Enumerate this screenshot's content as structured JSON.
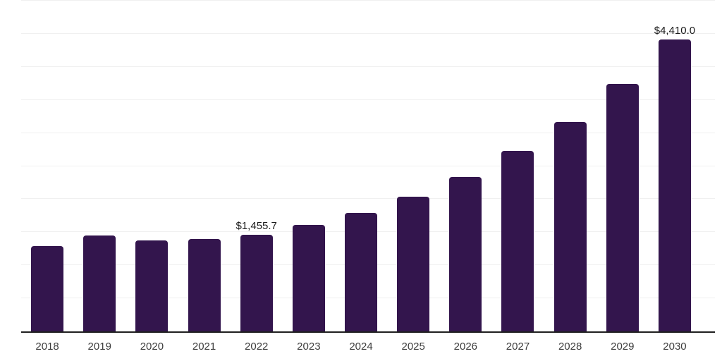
{
  "chart_data": {
    "type": "bar",
    "title": "",
    "xlabel": "",
    "ylabel": "",
    "categories": [
      "2018",
      "2019",
      "2020",
      "2021",
      "2022",
      "2023",
      "2024",
      "2025",
      "2026",
      "2027",
      "2028",
      "2029",
      "2030"
    ],
    "values": [
      1290,
      1450,
      1380,
      1400,
      1455.7,
      1610,
      1790,
      2035,
      2330,
      2730,
      3165,
      3740,
      4410
    ],
    "data_labels": [
      "",
      "",
      "",
      "",
      "$1,455.7",
      "",
      "",
      "",
      "",
      "",
      "",
      "",
      "$4,410.0"
    ],
    "ylim": [
      0,
      5000
    ],
    "grid_step": 500,
    "grid": "horizontal light gridlines, no y-axis tick labels",
    "legend_position": "none",
    "bar_color": "#33154d",
    "gridline_color": "#f0f0f0",
    "axis_line_color": "#1f1f1f",
    "x_tick_color": "#3d3d3d",
    "data_label_color": "#1a1a1a"
  }
}
